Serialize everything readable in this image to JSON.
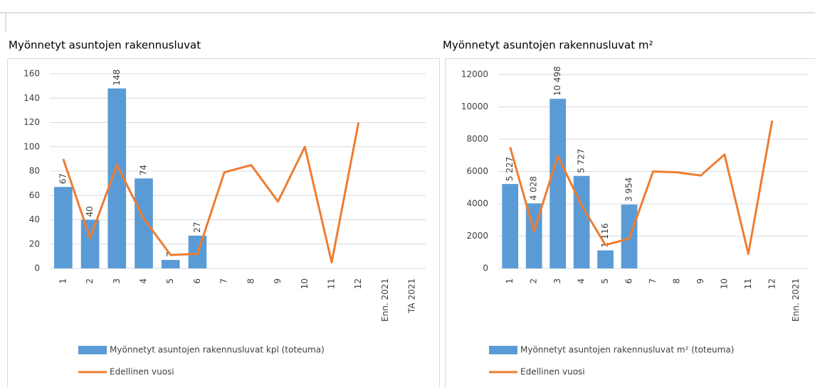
{
  "chart_data": [
    {
      "type": "bar",
      "title": "Myönnetyt asuntojen rakennusluvat",
      "categories": [
        "1",
        "2",
        "3",
        "4",
        "5",
        "6",
        "7",
        "8",
        "9",
        "10",
        "11",
        "12",
        "Enn. 2021",
        "TA 2021"
      ],
      "series": [
        {
          "name": "Myönnetyt asuntojen rakennusluvat kpl (toteuma)",
          "type": "bar",
          "color": "#5b9bd5",
          "values": [
            67,
            40,
            148,
            74,
            7,
            27,
            null,
            null,
            null,
            null,
            null,
            null,
            null,
            null
          ]
        },
        {
          "name": "Edellinen vuosi",
          "type": "line",
          "color": "#ed7d31",
          "values": [
            90,
            25,
            85,
            41,
            11,
            12,
            79,
            85,
            55,
            100,
            5,
            120,
            null,
            null
          ]
        }
      ],
      "ylim": [
        0,
        160
      ],
      "yticks": [
        0,
        20,
        40,
        60,
        80,
        100,
        120,
        140,
        160
      ],
      "grid": true
    },
    {
      "type": "bar",
      "title": "Myönnetyt asuntojen rakennusluvat m²",
      "categories": [
        "1",
        "2",
        "3",
        "4",
        "5",
        "6",
        "7",
        "8",
        "9",
        "10",
        "11",
        "12",
        "Enn. 2021"
      ],
      "series": [
        {
          "name": "Myönnetyt asuntojen rakennusluvat m² (toteuma)",
          "type": "bar",
          "color": "#5b9bd5",
          "values": [
            5227,
            4028,
            10498,
            5727,
            1116,
            3954,
            null,
            null,
            null,
            null,
            null,
            null,
            null
          ],
          "value_labels": [
            "5 227",
            "4 028",
            "10 498",
            "5 727",
            "1 116",
            "3 954",
            null,
            null,
            null,
            null,
            null,
            null,
            null
          ]
        },
        {
          "name": "Edellinen vuosi",
          "type": "line",
          "color": "#ed7d31",
          "values": [
            7500,
            2300,
            6950,
            3900,
            1450,
            1850,
            6000,
            5950,
            5750,
            7050,
            900,
            9150,
            null
          ]
        }
      ],
      "ylim": [
        0,
        12000
      ],
      "yticks": [
        0,
        2000,
        4000,
        6000,
        8000,
        10000,
        12000
      ],
      "grid": true
    }
  ]
}
